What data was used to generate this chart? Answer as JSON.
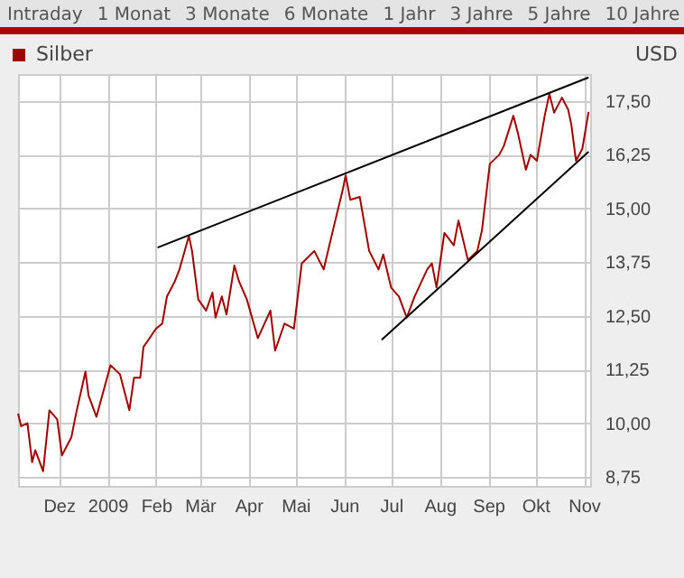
{
  "chart_data": {
    "type": "line",
    "ylabel": "USD",
    "legend": "top left",
    "grid": true,
    "annotations": [
      "Intraday",
      "1 Monat",
      "3 Monate",
      "6 Monate",
      "1 Jahr",
      "3 Jahre",
      "5 Jahre",
      "10 Jahre"
    ],
    "xlim": [
      "2008-11-05",
      "2009-11-05"
    ],
    "xticks": [
      {
        "value": "2008-12-01",
        "label": "Dez"
      },
      {
        "value": "2009-01-01",
        "label": "2009"
      },
      {
        "value": "2009-02-01",
        "label": "Feb"
      },
      {
        "value": "2009-03-01",
        "label": "Mär"
      },
      {
        "value": "2009-04-01",
        "label": "Apr"
      },
      {
        "value": "2009-05-01",
        "label": "Mai"
      },
      {
        "value": "2009-06-01",
        "label": "Jun"
      },
      {
        "value": "2009-07-01",
        "label": "Jul"
      },
      {
        "value": "2009-08-01",
        "label": "Aug"
      },
      {
        "value": "2009-09-01",
        "label": "Sep"
      },
      {
        "value": "2009-10-01",
        "label": "Okt"
      },
      {
        "value": "2009-11-01",
        "label": "Nov"
      }
    ],
    "ylim": [
      8.54,
      18.13
    ],
    "yticks": [
      {
        "value": 8.75,
        "label": "8,75"
      },
      {
        "value": 10,
        "label": "10,00"
      },
      {
        "value": 11.25,
        "label": "11,25"
      },
      {
        "value": 12.5,
        "label": "12,50"
      },
      {
        "value": 13.75,
        "label": "13,75"
      },
      {
        "value": 15,
        "label": "15,00"
      },
      {
        "value": 16.25,
        "label": "16,25"
      },
      {
        "value": 17.5,
        "label": "17,50"
      }
    ],
    "series": [
      {
        "name": "Silber",
        "color": "#a00000",
        "x": [
          "2008-11-05",
          "2008-11-07",
          "2008-11-11",
          "2008-11-14",
          "2008-11-16",
          "2008-11-21",
          "2008-11-25",
          "2008-11-30",
          "2008-12-03",
          "2008-12-09",
          "2008-12-12",
          "2008-12-18",
          "2008-12-20",
          "2008-12-25",
          "2009-01-03",
          "2009-01-09",
          "2009-01-15",
          "2009-01-18",
          "2009-01-22",
          "2009-01-24",
          "2009-02-01",
          "2009-02-05",
          "2009-02-08",
          "2009-02-13",
          "2009-02-16",
          "2009-02-22",
          "2009-02-24",
          "2009-02-28",
          "2009-03-05",
          "2009-03-09",
          "2009-03-11",
          "2009-03-15",
          "2009-03-18",
          "2009-03-23",
          "2009-03-26",
          "2009-03-31",
          "2009-04-07",
          "2009-04-15",
          "2009-04-18",
          "2009-04-24",
          "2009-04-30",
          "2009-05-05",
          "2009-05-13",
          "2009-05-19",
          "2009-05-25",
          "2009-05-31",
          "2009-06-02",
          "2009-06-05",
          "2009-06-11",
          "2009-06-17",
          "2009-06-23",
          "2009-06-26",
          "2009-07-01",
          "2009-07-06",
          "2009-07-11",
          "2009-07-16",
          "2009-07-24",
          "2009-07-27",
          "2009-07-30",
          "2009-08-04",
          "2009-08-10",
          "2009-08-13",
          "2009-08-19",
          "2009-08-25",
          "2009-08-28",
          "2009-09-02",
          "2009-09-08",
          "2009-09-11",
          "2009-09-17",
          "2009-09-20",
          "2009-09-25",
          "2009-09-28",
          "2009-10-02",
          "2009-10-07",
          "2009-10-10",
          "2009-10-13",
          "2009-10-18",
          "2009-10-22",
          "2009-10-24",
          "2009-10-27",
          "2009-10-31",
          "2009-11-04"
        ],
        "values": [
          10.22,
          9.93,
          10.0,
          9.09,
          9.37,
          8.88,
          10.3,
          10.09,
          9.25,
          9.67,
          10.22,
          11.2,
          10.64,
          10.15,
          11.35,
          11.14,
          10.3,
          11.06,
          11.06,
          11.77,
          12.2,
          12.32,
          12.95,
          13.3,
          13.58,
          14.36,
          14.01,
          12.88,
          12.62,
          13.04,
          12.46,
          12.95,
          12.53,
          13.67,
          13.3,
          12.88,
          11.98,
          12.62,
          11.69,
          12.32,
          12.2,
          13.72,
          14.01,
          13.58,
          14.51,
          15.41,
          15.77,
          15.2,
          15.27,
          14.01,
          13.58,
          13.93,
          13.16,
          12.95,
          12.46,
          12.95,
          13.58,
          13.72,
          13.16,
          14.43,
          14.14,
          14.72,
          13.8,
          14.01,
          14.5,
          16.04,
          16.25,
          16.46,
          17.16,
          16.74,
          15.9,
          16.25,
          16.11,
          17.16,
          17.67,
          17.23,
          17.58,
          17.3,
          16.95,
          16.11,
          16.39,
          17.25
        ]
      },
      {
        "color": "#000000",
        "x": [
          "2009-02-02",
          "2009-11-04"
        ],
        "values": [
          14.09,
          18.05
        ]
      },
      {
        "color": "#000000",
        "x": [
          "2009-06-25",
          "2009-11-04"
        ],
        "values": [
          11.94,
          16.32
        ]
      }
    ]
  }
}
